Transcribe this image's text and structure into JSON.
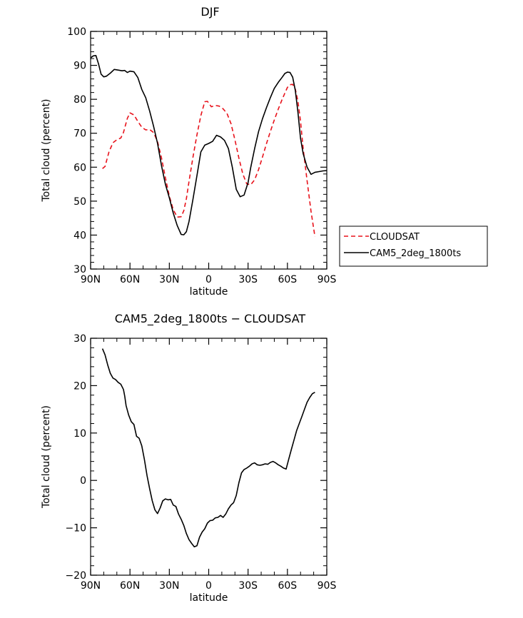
{
  "chart_data": [
    {
      "type": "line",
      "title": "DJF",
      "xlabel": "latitude",
      "ylabel": "Total cloud (percent)",
      "xlim": [
        90,
        -90
      ],
      "ylim": [
        30,
        100
      ],
      "x_ticks": [
        90,
        60,
        30,
        0,
        -30,
        -60,
        -90
      ],
      "x_tick_labels": [
        "90N",
        "60N",
        "30N",
        "0",
        "30S",
        "60S",
        "90S"
      ],
      "y_ticks": [
        30,
        40,
        50,
        60,
        70,
        80,
        90,
        100
      ],
      "y_tick_labels": [
        "30",
        "40",
        "50",
        "60",
        "70",
        "80",
        "90",
        "100"
      ],
      "legend_position": "outside-right",
      "series": [
        {
          "name": "CLOUDSAT",
          "color": "#e8121b",
          "dash": "dashed",
          "x": [
            81,
            79,
            76,
            73,
            70,
            67,
            65,
            62,
            60,
            57,
            54,
            51,
            48,
            45,
            42,
            39,
            36,
            33,
            30,
            27,
            24,
            21,
            19,
            17,
            15,
            12,
            9,
            6,
            3,
            1,
            -2,
            -5,
            -8,
            -11,
            -14,
            -17,
            -20,
            -23,
            -26,
            -29,
            -32,
            -35,
            -38,
            -41,
            -44,
            -47,
            -50,
            -53,
            -56,
            -58,
            -60,
            -62,
            -64,
            -66,
            -68,
            -70,
            -72,
            -75,
            -78,
            -81
          ],
          "y": [
            59.6,
            60.2,
            64.5,
            67.2,
            68.1,
            68.6,
            70.2,
            74.4,
            76.0,
            75.4,
            73.5,
            71.8,
            71.0,
            71.1,
            70.2,
            67.5,
            62.8,
            56.9,
            51.5,
            47.5,
            45.3,
            45.4,
            47.2,
            50.7,
            55.8,
            62.9,
            69.5,
            75.2,
            79.3,
            79.4,
            77.8,
            78.2,
            78.0,
            77.2,
            75.8,
            72.8,
            68.0,
            62.7,
            58.0,
            55.1,
            54.8,
            56.3,
            59.3,
            63.0,
            66.9,
            70.5,
            73.9,
            77.1,
            80.0,
            81.8,
            83.5,
            84.3,
            84.4,
            83.0,
            79.5,
            73.5,
            65.5,
            56.0,
            47.0,
            39.5
          ]
        },
        {
          "name": "CAM5_2deg_1800ts",
          "color": "#000000",
          "dash": "solid",
          "x": [
            90,
            88,
            86,
            84,
            82,
            80,
            78,
            75,
            72,
            69,
            66,
            64,
            62,
            60,
            57,
            54,
            51,
            48,
            45,
            42,
            39,
            36,
            33,
            30,
            27,
            24,
            21,
            19,
            17,
            15,
            12,
            9,
            6,
            3,
            0,
            -3,
            -6,
            -9,
            -12,
            -15,
            -18,
            -21,
            -24,
            -27,
            -30,
            -32,
            -35,
            -38,
            -41,
            -44,
            -47,
            -50,
            -53,
            -56,
            -58,
            -60,
            -62,
            -64,
            -66,
            -68,
            -70,
            -72,
            -75,
            -78,
            -81,
            -84,
            -87,
            -90
          ],
          "y": [
            92.2,
            92.8,
            92.9,
            90.5,
            87.4,
            86.6,
            86.8,
            87.7,
            88.8,
            88.6,
            88.4,
            88.5,
            87.9,
            88.3,
            88.1,
            86.4,
            82.9,
            80.5,
            76.5,
            72.0,
            67.0,
            60.5,
            55.0,
            51.0,
            46.5,
            42.8,
            40.2,
            40.1,
            41.0,
            44.0,
            50.5,
            57.5,
            64.5,
            66.5,
            67.0,
            67.6,
            69.4,
            68.9,
            67.9,
            65.5,
            60.0,
            53.5,
            51.3,
            51.8,
            55.5,
            59.8,
            65.5,
            70.5,
            74.3,
            77.5,
            80.5,
            83.2,
            85.0,
            86.5,
            87.6,
            88.0,
            87.9,
            86.5,
            82.6,
            76.3,
            68.5,
            64.0,
            60.0,
            57.9,
            58.5,
            58.7,
            58.9,
            59.0
          ]
        }
      ]
    },
    {
      "type": "line",
      "title": "CAM5_2deg_1800ts − CLOUDSAT",
      "xlabel": "latitude",
      "ylabel": "Total cloud (percent)",
      "xlim": [
        90,
        -90
      ],
      "ylim": [
        -20,
        30
      ],
      "x_ticks": [
        90,
        60,
        30,
        0,
        -30,
        -60,
        -90
      ],
      "x_tick_labels": [
        "90N",
        "60N",
        "30N",
        "0",
        "30S",
        "60S",
        "90S"
      ],
      "y_ticks": [
        -20,
        -10,
        0,
        10,
        20,
        30
      ],
      "y_tick_labels": [
        "−20",
        "−10",
        "0",
        "10",
        "20",
        "30"
      ],
      "series": [
        {
          "name": "CAM5_2deg_1800ts - CLOUDSAT",
          "color": "#000000",
          "dash": "solid",
          "x": [
            81,
            79,
            77,
            75,
            73,
            71,
            69,
            67,
            65,
            64,
            63,
            61,
            59,
            57,
            55,
            53,
            51,
            49,
            47,
            45,
            43,
            41,
            39,
            37,
            35,
            33,
            31,
            29,
            27,
            25,
            23,
            21,
            19,
            17,
            15,
            13,
            11,
            9,
            7,
            5,
            3,
            1,
            -1,
            -3,
            -5,
            -7,
            -9,
            -11,
            -13,
            -15,
            -17,
            -19,
            -21,
            -23,
            -25,
            -27,
            -29,
            -31,
            -33,
            -35,
            -37,
            -39,
            -41,
            -43,
            -45,
            -47,
            -49,
            -51,
            -53,
            -55,
            -57,
            -59,
            -61,
            -63,
            -65,
            -67,
            -69,
            -71,
            -73,
            -75,
            -77,
            -79,
            -81
          ],
          "y": [
            27.8,
            26.5,
            24.4,
            22.6,
            21.6,
            21.3,
            20.7,
            20.3,
            19.2,
            17.8,
            15.8,
            13.8,
            12.4,
            11.8,
            9.3,
            8.9,
            7.3,
            4.4,
            1.0,
            -1.8,
            -4.3,
            -6.2,
            -7.0,
            -5.8,
            -4.3,
            -3.9,
            -4.1,
            -4.0,
            -5.2,
            -5.5,
            -7.1,
            -8.2,
            -9.5,
            -11.2,
            -12.5,
            -13.3,
            -14.0,
            -13.8,
            -12.0,
            -10.9,
            -10.2,
            -9.0,
            -8.5,
            -8.4,
            -7.9,
            -7.8,
            -7.4,
            -7.8,
            -7.1,
            -6.0,
            -5.2,
            -4.7,
            -3.2,
            -0.5,
            1.6,
            2.3,
            2.6,
            3.0,
            3.5,
            3.7,
            3.3,
            3.2,
            3.3,
            3.5,
            3.4,
            3.8,
            4.0,
            3.7,
            3.3,
            3.0,
            2.6,
            2.4,
            4.5,
            6.5,
            8.5,
            10.5,
            12.0,
            13.5,
            15.0,
            16.5,
            17.5,
            18.3,
            18.6
          ]
        }
      ]
    }
  ]
}
